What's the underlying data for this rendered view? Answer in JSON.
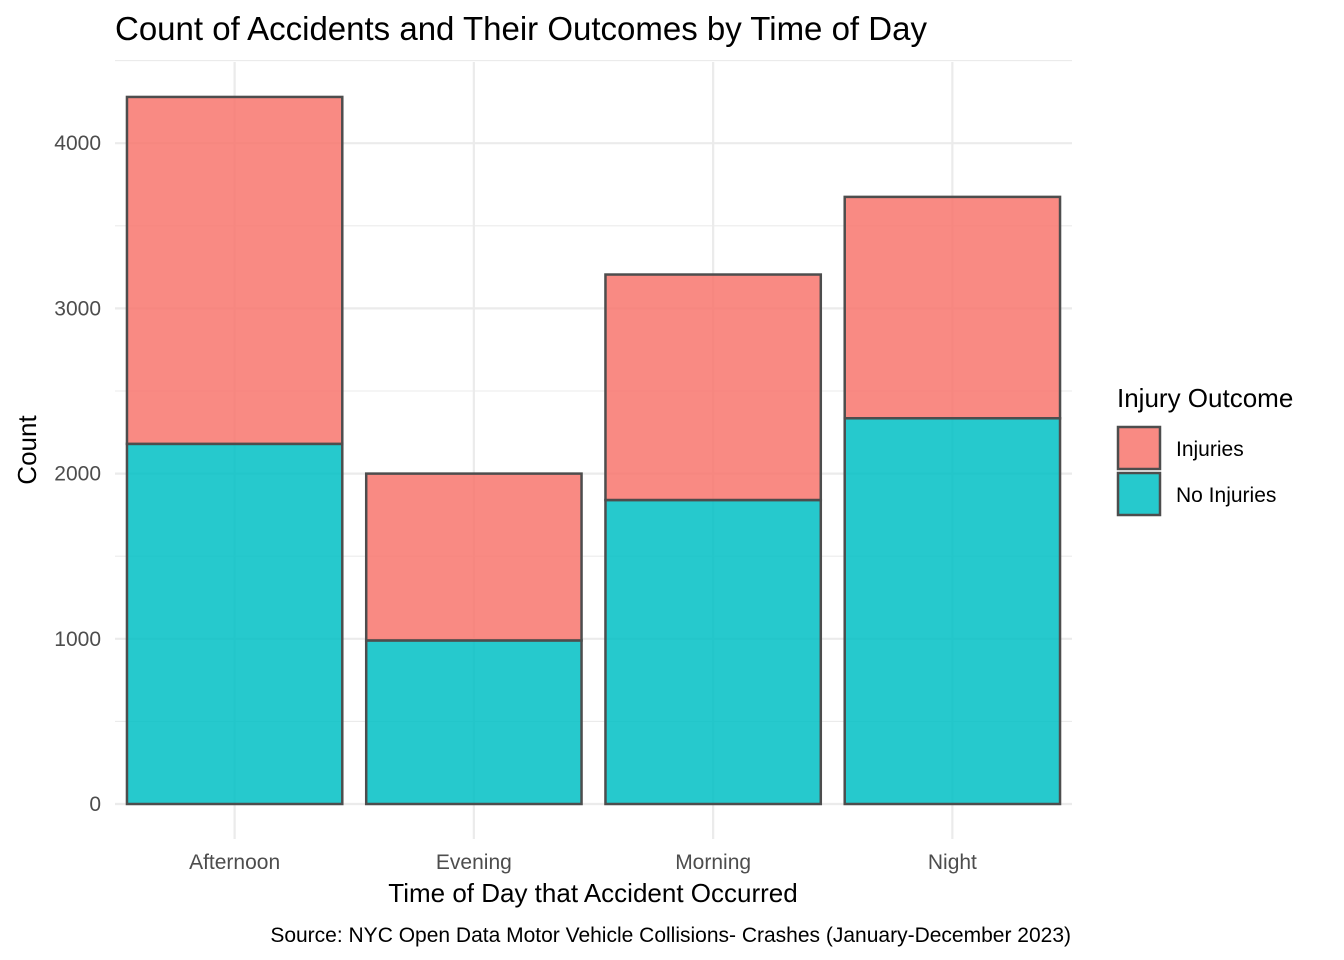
{
  "chart_data": {
    "type": "bar",
    "stacked": true,
    "title": "Count of Accidents and Their Outcomes by Time of Day",
    "xlabel": "Time of Day that Accident Occurred",
    "ylabel": "Count",
    "caption": "Source: NYC Open Data Motor Vehicle Collisions- Crashes (January-December 2023)",
    "categories": [
      "Afternoon",
      "Evening",
      "Morning",
      "Night"
    ],
    "series": [
      {
        "name": "No Injuries",
        "values": [
          2180,
          990,
          1840,
          2335
        ],
        "color": "#00BFC4"
      },
      {
        "name": "Injuries",
        "values": [
          2100,
          1010,
          1365,
          1340
        ],
        "color": "#F8766D"
      }
    ],
    "ylim": [
      0,
      4520
    ],
    "yticks": [
      0,
      1000,
      2000,
      3000,
      4000
    ],
    "grid": true,
    "legend": {
      "title": "Injury Outcome",
      "position": "right",
      "entries": [
        "Injuries",
        "No Injuries"
      ]
    }
  }
}
